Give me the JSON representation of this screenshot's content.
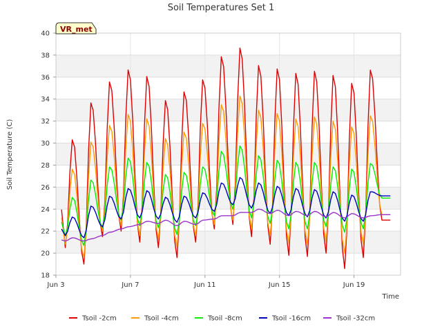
{
  "chart_data": {
    "type": "line",
    "title": "Soil Temperatures Set 1",
    "xlabel": "Time",
    "ylabel": "Soil Temperature (C)",
    "badge": "VR_met",
    "ylim": [
      18,
      40
    ],
    "yticks": [
      18,
      20,
      22,
      24,
      26,
      28,
      30,
      32,
      34,
      36,
      38,
      40
    ],
    "xlim": [
      3.0,
      21.5
    ],
    "xticks": [
      {
        "value": 3,
        "label": "Jun 3"
      },
      {
        "value": 7,
        "label": "Jun 7"
      },
      {
        "value": 11,
        "label": "Jun 11"
      },
      {
        "value": 15,
        "label": "Jun 15"
      },
      {
        "value": 19,
        "label": "Jun 19"
      }
    ],
    "grid": true,
    "legend_position": "bottom",
    "x_start": 3.3,
    "x_end": 20.95,
    "points_per_day": 8,
    "series": [
      {
        "name": "Tsoil -2cm",
        "color": "#dd0000",
        "peaks": [
          30.4,
          33.8,
          35.7,
          36.8,
          36.2,
          34.0,
          34.8,
          35.9,
          38.0,
          38.8,
          37.2,
          36.9,
          36.5,
          36.7,
          36.3,
          35.6,
          36.8
        ],
        "troughs": [
          20.5,
          19.0,
          21.5,
          22.0,
          21.0,
          20.5,
          19.6,
          21.0,
          22.2,
          22.6,
          21.5,
          20.8,
          19.8,
          19.7,
          20.0,
          18.6,
          19.6,
          23.0
        ]
      },
      {
        "name": "Tsoil -4cm",
        "color": "#ff9900",
        "peaks": [
          27.7,
          30.2,
          31.7,
          32.7,
          32.3,
          30.5,
          31.1,
          31.9,
          33.6,
          34.4,
          33.1,
          32.8,
          32.3,
          32.5,
          32.1,
          31.6,
          32.6
        ],
        "troughs": [
          20.8,
          19.6,
          22.0,
          22.5,
          21.6,
          21.3,
          20.6,
          21.6,
          22.6,
          23.0,
          22.2,
          21.6,
          20.9,
          20.8,
          21.1,
          20.0,
          20.8,
          23.5
        ]
      },
      {
        "name": "Tsoil -8cm",
        "color": "#00ee00",
        "peaks": [
          25.1,
          26.7,
          27.9,
          28.7,
          28.3,
          27.2,
          27.4,
          27.9,
          29.3,
          29.8,
          28.9,
          28.5,
          28.3,
          28.3,
          27.9,
          27.7,
          28.2
        ],
        "troughs": [
          21.6,
          20.7,
          22.3,
          23.0,
          22.5,
          22.3,
          21.7,
          22.5,
          23.4,
          24.0,
          23.2,
          22.7,
          22.2,
          22.2,
          22.4,
          21.9,
          22.2,
          25.0
        ]
      },
      {
        "name": "Tsoil -16cm",
        "color": "#0000bb",
        "peaks": [
          23.3,
          24.3,
          25.2,
          25.9,
          25.7,
          25.1,
          25.2,
          25.5,
          26.4,
          26.9,
          26.4,
          26.1,
          25.9,
          25.8,
          25.6,
          25.3,
          25.6
        ],
        "troughs": [
          21.6,
          21.4,
          22.4,
          23.1,
          23.2,
          23.1,
          22.8,
          23.2,
          23.8,
          24.4,
          24.1,
          23.6,
          23.4,
          23.3,
          23.2,
          22.9,
          22.9,
          25.2
        ]
      },
      {
        "name": "Tsoil -32cm",
        "color": "#9933cc",
        "peaks": [
          21.4,
          21.3,
          21.9,
          22.4,
          22.9,
          23.0,
          22.9,
          23.0,
          23.4,
          23.7,
          24.0,
          23.9,
          23.8,
          23.8,
          23.7,
          23.6,
          23.4
        ],
        "troughs": [
          21.1,
          21.1,
          21.6,
          22.2,
          22.6,
          22.7,
          22.5,
          22.6,
          23.1,
          23.4,
          23.7,
          23.6,
          23.4,
          23.4,
          23.3,
          23.2,
          23.2,
          23.5
        ]
      }
    ]
  }
}
